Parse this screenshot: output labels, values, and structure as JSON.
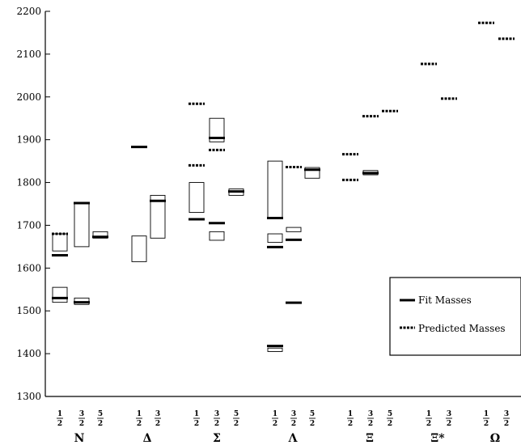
{
  "chart_data": {
    "type": "box-and-marker",
    "ylim": [
      1300,
      2200
    ],
    "yticks": [
      1300,
      1400,
      1500,
      1600,
      1700,
      1800,
      1900,
      2000,
      2100,
      2200
    ],
    "groups": [
      {
        "name": "N",
        "spins": [
          "1/2",
          "3/2",
          "5/2"
        ]
      },
      {
        "name": "Δ",
        "spins": [
          "1/2",
          "3/2"
        ]
      },
      {
        "name": "Σ",
        "spins": [
          "1/2",
          "3/2",
          "5/2"
        ]
      },
      {
        "name": "Λ",
        "spins": [
          "1/2",
          "3/2",
          "5/2"
        ]
      },
      {
        "name": "Ξ",
        "spins": [
          "1/2",
          "3/2",
          "5/2"
        ]
      },
      {
        "name": "Ξ*",
        "spins": [
          "1/2",
          "3/2"
        ]
      },
      {
        "name": "Ω",
        "spins": [
          "1/2",
          "3/2"
        ]
      }
    ],
    "boxes": [
      {
        "group": "N",
        "spin": "1/2",
        "lo": 1520,
        "hi": 1555
      },
      {
        "group": "N",
        "spin": "1/2",
        "lo": 1640,
        "hi": 1680
      },
      {
        "group": "N",
        "spin": "3/2",
        "lo": 1515,
        "hi": 1530
      },
      {
        "group": "N",
        "spin": "3/2",
        "lo": 1650,
        "hi": 1750
      },
      {
        "group": "N",
        "spin": "5/2",
        "lo": 1670,
        "hi": 1685
      },
      {
        "group": "Δ",
        "spin": "1/2",
        "lo": 1615,
        "hi": 1675
      },
      {
        "group": "Δ",
        "spin": "3/2",
        "lo": 1670,
        "hi": 1770
      },
      {
        "group": "Σ",
        "spin": "1/2",
        "lo": 1730,
        "hi": 1800
      },
      {
        "group": "Σ",
        "spin": "3/2",
        "lo": 1665,
        "hi": 1685
      },
      {
        "group": "Σ",
        "spin": "3/2",
        "lo": 1895,
        "hi": 1950
      },
      {
        "group": "Σ",
        "spin": "5/2",
        "lo": 1770,
        "hi": 1785
      },
      {
        "group": "Λ",
        "spin": "1/2",
        "lo": 1405,
        "hi": 1413
      },
      {
        "group": "Λ",
        "spin": "1/2",
        "lo": 1660,
        "hi": 1680
      },
      {
        "group": "Λ",
        "spin": "1/2",
        "lo": 1715,
        "hi": 1850
      },
      {
        "group": "Λ",
        "spin": "3/2",
        "lo": 1685,
        "hi": 1695
      },
      {
        "group": "Λ",
        "spin": "5/2",
        "lo": 1810,
        "hi": 1835
      },
      {
        "group": "Ξ",
        "spin": "3/2",
        "lo": 1818,
        "hi": 1828
      }
    ],
    "fit_masses": [
      {
        "group": "N",
        "spin": "1/2",
        "values": [
          1530,
          1630
        ]
      },
      {
        "group": "N",
        "spin": "3/2",
        "values": [
          1520,
          1752
        ]
      },
      {
        "group": "N",
        "spin": "5/2",
        "values": [
          1673
        ]
      },
      {
        "group": "Δ",
        "spin": "1/2",
        "values": [
          1883
        ]
      },
      {
        "group": "Δ",
        "spin": "3/2",
        "values": [
          1757
        ]
      },
      {
        "group": "Σ",
        "spin": "1/2",
        "values": [
          1714
        ]
      },
      {
        "group": "Σ",
        "spin": "3/2",
        "values": [
          1705,
          1904
        ]
      },
      {
        "group": "Σ",
        "spin": "5/2",
        "values": [
          1779
        ]
      },
      {
        "group": "Λ",
        "spin": "1/2",
        "values": [
          1418,
          1649,
          1717
        ]
      },
      {
        "group": "Λ",
        "spin": "3/2",
        "values": [
          1519,
          1666
        ]
      },
      {
        "group": "Λ",
        "spin": "5/2",
        "values": [
          1830
        ]
      },
      {
        "group": "Ξ",
        "spin": "3/2",
        "values": [
          1822
        ]
      }
    ],
    "predicted_masses": [
      {
        "group": "N",
        "spin": "1/2",
        "values": [
          1680
        ]
      },
      {
        "group": "Σ",
        "spin": "1/2",
        "values": [
          1840,
          1984
        ]
      },
      {
        "group": "Σ",
        "spin": "3/2",
        "values": [
          1876
        ]
      },
      {
        "group": "Λ",
        "spin": "3/2",
        "values": [
          1836
        ]
      },
      {
        "group": "Ξ",
        "spin": "1/2",
        "values": [
          1806,
          1866
        ]
      },
      {
        "group": "Ξ",
        "spin": "3/2",
        "values": [
          1955
        ]
      },
      {
        "group": "Ξ",
        "spin": "5/2",
        "values": [
          1967
        ]
      },
      {
        "group": "Ξ*",
        "spin": "1/2",
        "values": [
          2077
        ]
      },
      {
        "group": "Ξ*",
        "spin": "3/2",
        "values": [
          1996
        ]
      },
      {
        "group": "Ω",
        "spin": "1/2",
        "values": [
          2173
        ]
      },
      {
        "group": "Ω",
        "spin": "3/2",
        "values": [
          2136
        ]
      }
    ],
    "legend": {
      "position": "lower-right",
      "entries": [
        {
          "label": "Fit Masses",
          "style": "solid"
        },
        {
          "label": "Predicted Masses",
          "style": "dashed"
        }
      ]
    },
    "grid": false
  }
}
